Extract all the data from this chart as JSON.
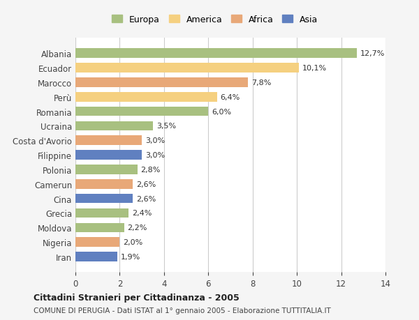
{
  "categories": [
    "Albania",
    "Ecuador",
    "Marocco",
    "Perù",
    "Romania",
    "Ucraina",
    "Costa d'Avorio",
    "Filippine",
    "Polonia",
    "Camerun",
    "Cina",
    "Grecia",
    "Moldova",
    "Nigeria",
    "Iran"
  ],
  "values": [
    12.7,
    10.1,
    7.8,
    6.4,
    6.0,
    3.5,
    3.0,
    3.0,
    2.8,
    2.6,
    2.6,
    2.4,
    2.2,
    2.0,
    1.9
  ],
  "labels": [
    "12,7%",
    "10,1%",
    "7,8%",
    "6,4%",
    "6,0%",
    "3,5%",
    "3,0%",
    "3,0%",
    "2,8%",
    "2,6%",
    "2,6%",
    "2,4%",
    "2,2%",
    "2,0%",
    "1,9%"
  ],
  "continents": [
    "Europa",
    "America",
    "Africa",
    "America",
    "Europa",
    "Europa",
    "Africa",
    "Asia",
    "Europa",
    "Africa",
    "Asia",
    "Europa",
    "Europa",
    "Africa",
    "Asia"
  ],
  "colors": {
    "Europa": "#a8c080",
    "America": "#f5d080",
    "Africa": "#e8a878",
    "Asia": "#6080c0"
  },
  "legend_order": [
    "Europa",
    "America",
    "Africa",
    "Asia"
  ],
  "xlim": [
    0,
    14
  ],
  "xticks": [
    0,
    2,
    4,
    6,
    8,
    10,
    12,
    14
  ],
  "title": "Cittadini Stranieri per Cittadinanza - 2005",
  "subtitle": "COMUNE DI PERUGIA - Dati ISTAT al 1° gennaio 2005 - Elaborazione TUTTITALIA.IT",
  "bg_color": "#f5f5f5",
  "plot_bg_color": "#ffffff",
  "grid_color": "#cccccc",
  "bar_height": 0.65
}
